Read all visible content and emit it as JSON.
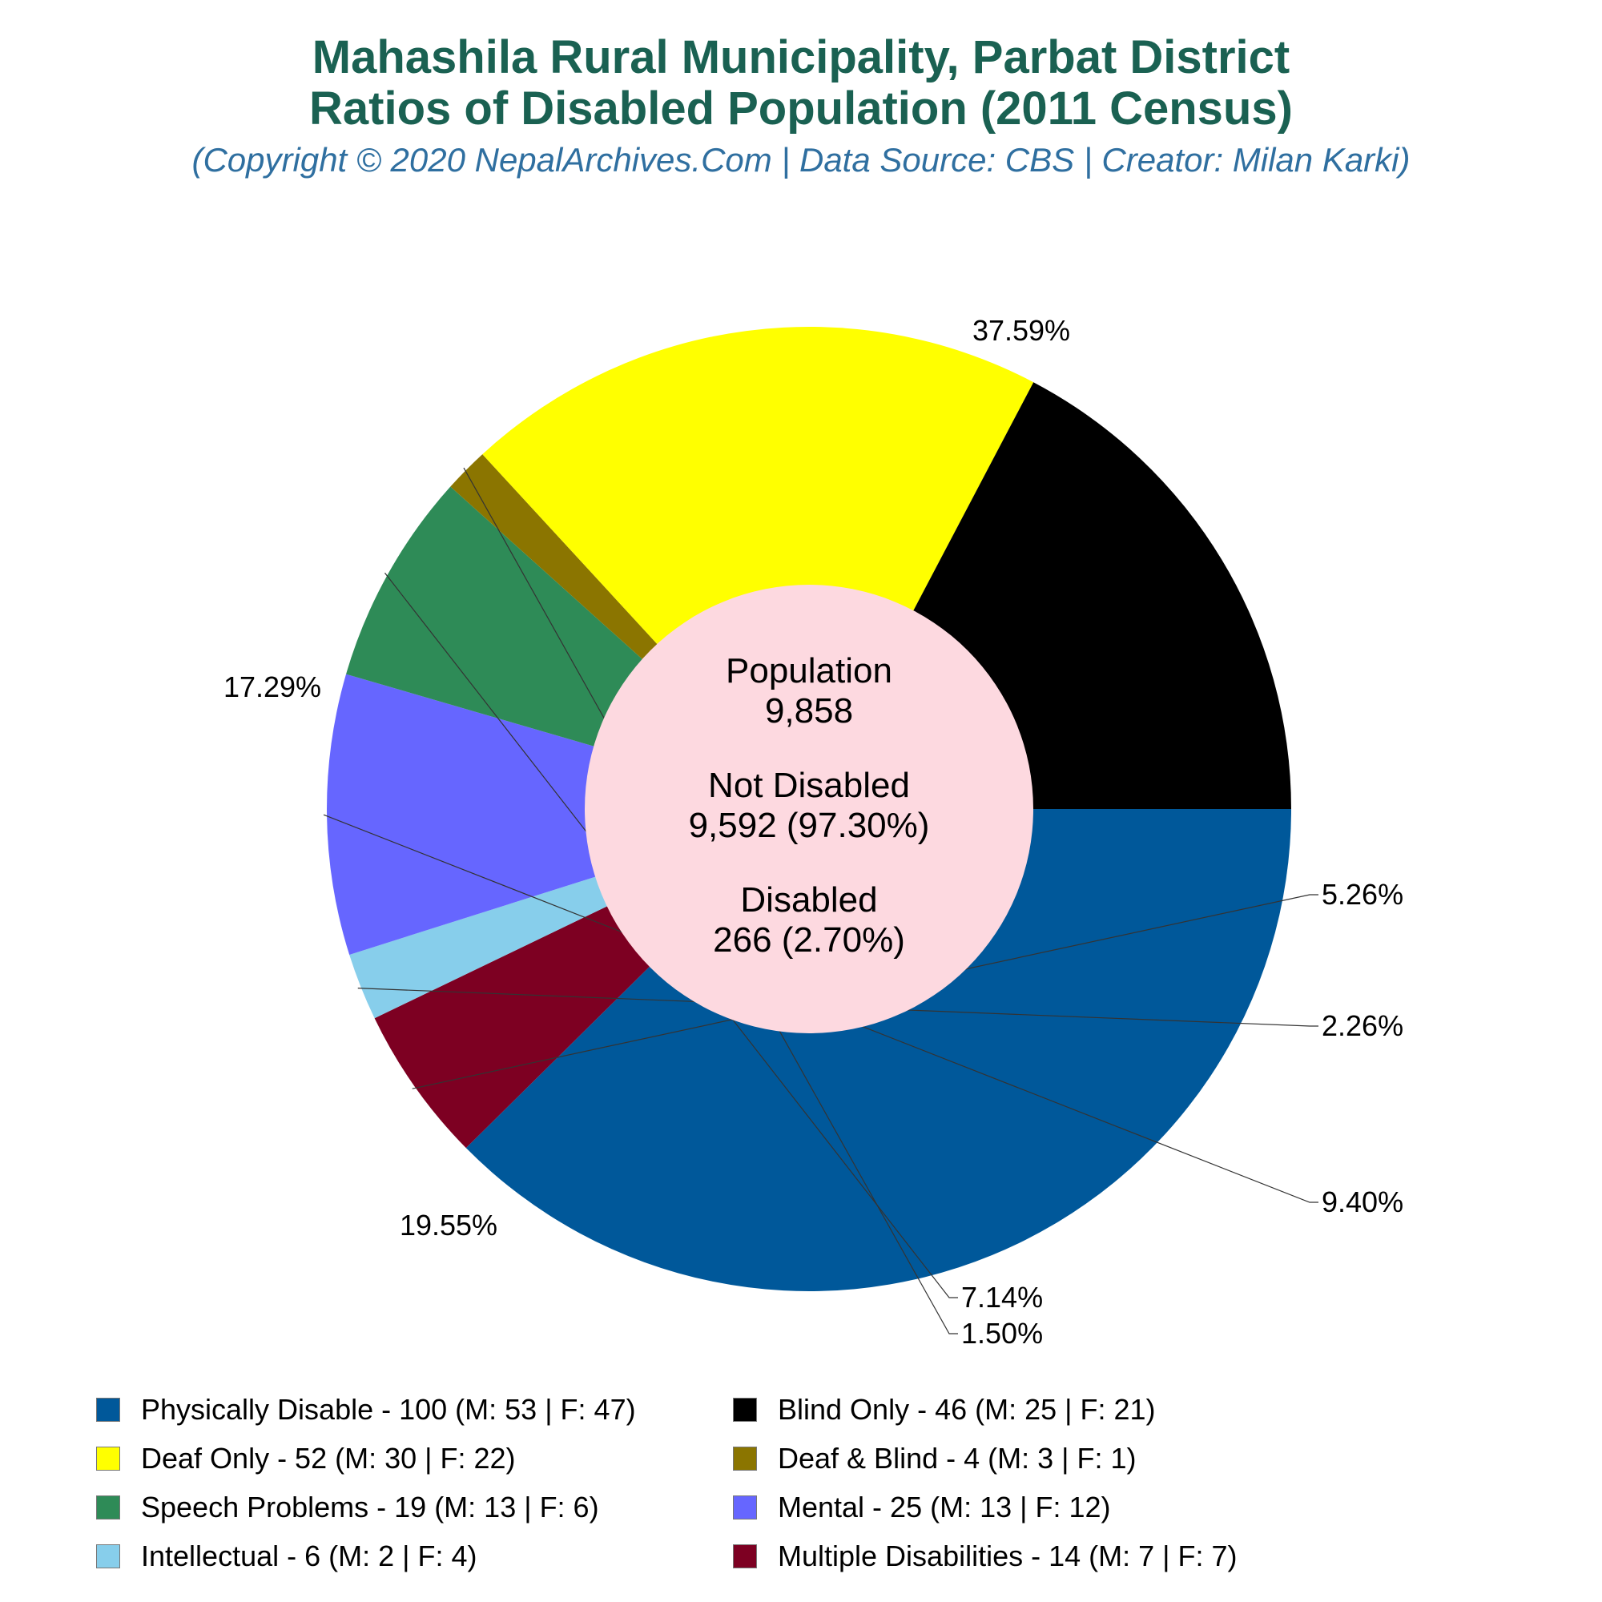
{
  "header": {
    "title_line1": "Mahashila Rural Municipality, Parbat District",
    "title_line2": "Ratios of Disabled Population (2011 Census)",
    "subtitle": "(Copyright © 2020 NepalArchives.Com | Data Source: CBS | Creator: Milan Karki)"
  },
  "center": {
    "population_label": "Population",
    "population_value": "9,858",
    "not_disabled_label": "Not Disabled",
    "not_disabled_value": "9,592 (97.30%)",
    "disabled_label": "Disabled",
    "disabled_value": "266 (2.70%)",
    "color": "#fdd9e0"
  },
  "chart_data": {
    "type": "pie",
    "title": "Mahashila Rural Municipality, Parbat District Ratios of Disabled Population (2011 Census)",
    "legend_position": "bottom",
    "slices": [
      {
        "legend": "Physically Disable - 100 (M: 53 | F: 47)",
        "value": 100,
        "percent_label": "37.59%",
        "color": "#00589a"
      },
      {
        "legend": "Multiple Disabilities - 14 (M: 7 | F: 7)",
        "value": 14,
        "percent_label": "5.26%",
        "color": "#7d0022"
      },
      {
        "legend": "Intellectual - 6 (M: 2 | F: 4)",
        "value": 6,
        "percent_label": "2.26%",
        "color": "#87ceeb"
      },
      {
        "legend": "Mental - 25 (M: 13 | F: 12)",
        "value": 25,
        "percent_label": "9.40%",
        "color": "#6666ff"
      },
      {
        "legend": "Speech Problems - 19 (M: 13 | F: 6)",
        "value": 19,
        "percent_label": "7.14%",
        "color": "#2e8b57"
      },
      {
        "legend": "Deaf & Blind - 4 (M: 3 | F: 1)",
        "value": 4,
        "percent_label": "1.50%",
        "color": "#8b7500"
      },
      {
        "legend": "Deaf Only - 52 (M: 30 | F: 22)",
        "value": 52,
        "percent_label": "19.55%",
        "color": "#ffff00"
      },
      {
        "legend": "Blind Only - 46 (M: 25 | F: 21)",
        "value": 46,
        "percent_label": "17.29%",
        "color": "#000000"
      }
    ]
  },
  "legend": {
    "items": [
      {
        "label": "Physically Disable - 100 (M: 53 | F: 47)",
        "color": "#00589a"
      },
      {
        "label": "Blind Only - 46 (M: 25 | F: 21)",
        "color": "#000000"
      },
      {
        "label": "Deaf Only - 52 (M: 30 | F: 22)",
        "color": "#ffff00"
      },
      {
        "label": "Deaf & Blind - 4 (M: 3 | F: 1)",
        "color": "#8b7500"
      },
      {
        "label": "Speech Problems - 19 (M: 13 | F: 6)",
        "color": "#2e8b57"
      },
      {
        "label": "Mental - 25 (M: 13 | F: 12)",
        "color": "#6666ff"
      },
      {
        "label": "Intellectual - 6 (M: 2 | F: 4)",
        "color": "#87ceeb"
      },
      {
        "label": "Multiple Disabilities - 14 (M: 7 | F: 7)",
        "color": "#7d0022"
      }
    ]
  }
}
